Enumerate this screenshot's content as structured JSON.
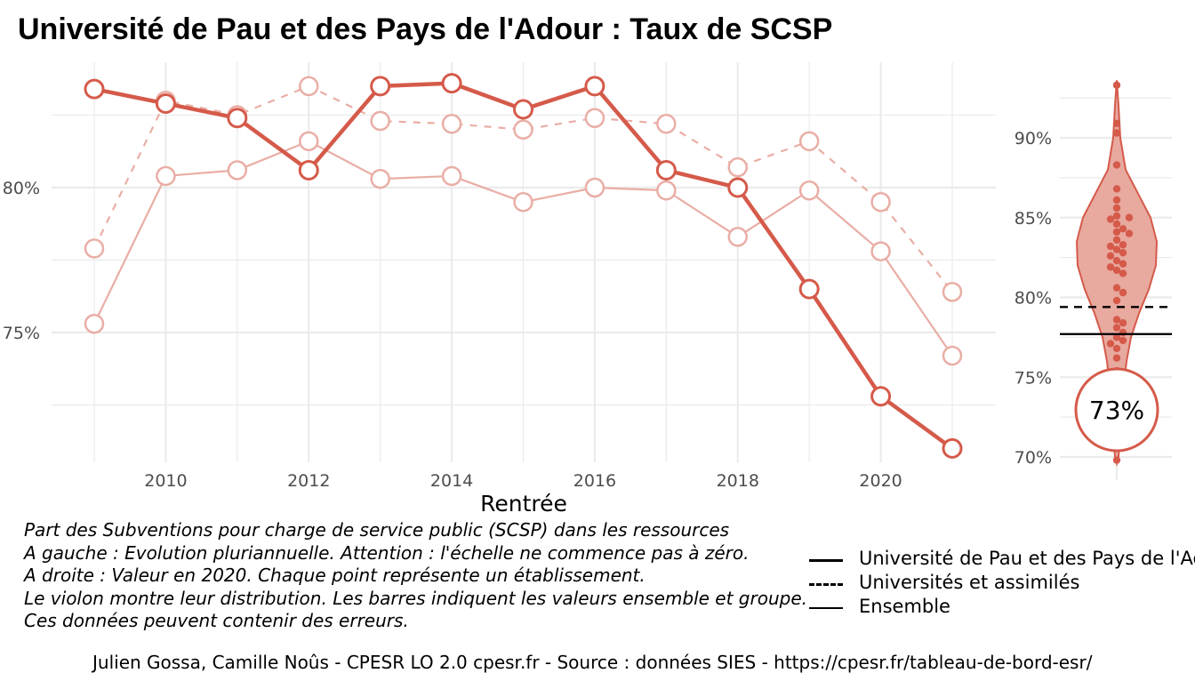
{
  "title": "Université de Pau et des Pays de l'Adour  :  Taux de SCSP",
  "chart_data": [
    {
      "type": "line",
      "x": [
        2009,
        2010,
        2011,
        2012,
        2013,
        2014,
        2015,
        2016,
        2017,
        2018,
        2019,
        2020,
        2021
      ],
      "series": [
        {
          "name": "Université de Pau et des Pays de l'Adour",
          "values": [
            83.4,
            82.9,
            82.4,
            80.6,
            83.5,
            83.6,
            82.7,
            83.5,
            80.6,
            80.0,
            76.5,
            72.8,
            71.0
          ]
        },
        {
          "name": "Universités et assimilés",
          "values": [
            77.9,
            83.0,
            82.5,
            83.5,
            82.3,
            82.2,
            82.0,
            82.4,
            82.2,
            80.7,
            81.6,
            79.5,
            76.4
          ]
        },
        {
          "name": "Ensemble",
          "values": [
            75.3,
            80.4,
            80.6,
            81.6,
            80.3,
            80.4,
            79.5,
            80.0,
            79.9,
            78.3,
            79.9,
            77.8,
            74.2
          ]
        }
      ],
      "xlabel": "Rentrée",
      "ylabel": "",
      "xticks": [
        2010,
        2012,
        2014,
        2016,
        2018,
        2020
      ],
      "yticks": [
        "75%",
        "80%"
      ],
      "ylim": [
        70.5,
        85
      ],
      "grid": true
    },
    {
      "type": "scatter",
      "subtype": "violin",
      "highlight_label": "73%",
      "highlight_value": 73,
      "yticks": [
        "70%",
        "75%",
        "80%",
        "85%",
        "90%"
      ],
      "ylim": [
        69.5,
        93.7
      ],
      "reference_lines": [
        {
          "name": "Universités et assimilés",
          "value": 79.4,
          "style": "dashed"
        },
        {
          "name": "Ensemble",
          "value": 77.7,
          "style": "solid"
        }
      ],
      "points": [
        93.3,
        90.9,
        90.3,
        88.3,
        86.8,
        86.1,
        85.6,
        85.1,
        85.0,
        84.9,
        84.6,
        84.3,
        84.1,
        84.0,
        83.6,
        83.3,
        83.2,
        83.0,
        82.8,
        82.6,
        82.3,
        82.1,
        81.9,
        81.7,
        81.5,
        80.6,
        80.3,
        79.8,
        78.6,
        78.4,
        78.1,
        77.8,
        77.5,
        77.3,
        77.1,
        76.8,
        76.2,
        75.4,
        74.5,
        73.0,
        69.8
      ],
      "grid": true
    }
  ],
  "colors": {
    "main": "#d55a4a",
    "light": "#e9aea5",
    "fill": "#e8a99f",
    "grid": "#ebebeb",
    "axis_text": "#4d4d4d"
  },
  "captions": [
    "Part des Subventions pour charge de service public (SCSP) dans les ressources",
    "A gauche : Evolution pluriannuelle. Attention : l'échelle ne commence pas à zéro.",
    "A droite : Valeur en 2020. Chaque point représente un établissement.",
    "Le violon montre leur distribution. Les barres indiquent les valeurs ensemble et groupe.",
    "Ces données peuvent contenir des erreurs."
  ],
  "legend": [
    "Université de Pau et des Pays de l'Adour",
    "Universités et assimilés",
    "Ensemble"
  ],
  "footer": "Julien Gossa, Camille Noûs - CPESR LO 2.0 cpesr.fr - Source : données SIES - https://cpesr.fr/tableau-de-bord-esr/"
}
